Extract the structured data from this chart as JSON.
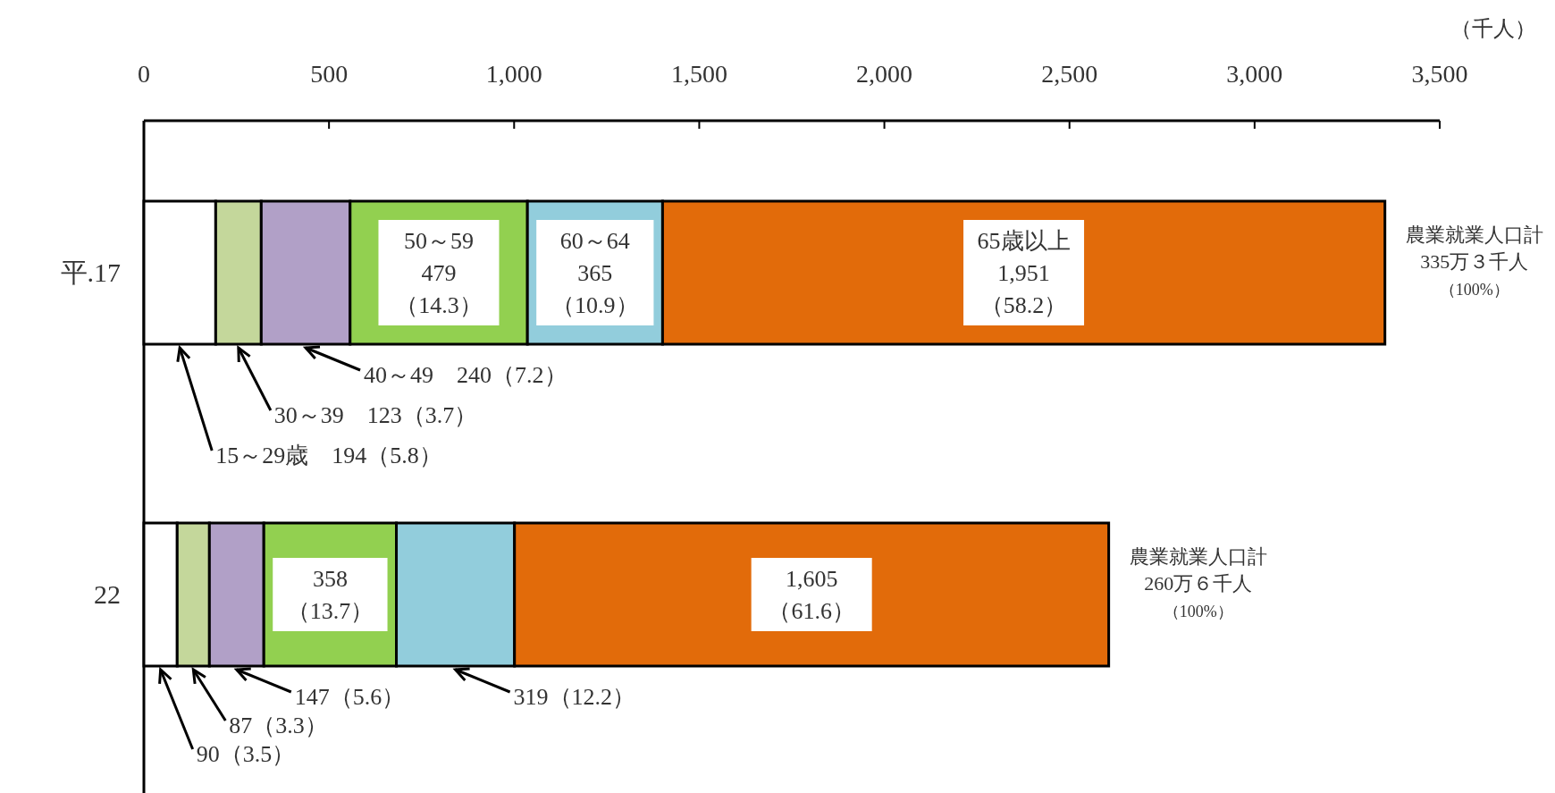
{
  "chart_data": {
    "type": "bar",
    "orientation": "horizontal",
    "stacked": true,
    "xlabel": "（千人）",
    "categories": [
      "平.17",
      "22"
    ],
    "xlim": [
      0,
      3500
    ],
    "xticks": [
      0,
      500,
      {
        "value": 1000,
        "label": "1,000"
      },
      {
        "value": 1500,
        "label": "1,500"
      },
      {
        "value": 2000,
        "label": "2,000"
      },
      {
        "value": 2500,
        "label": "2,500"
      },
      {
        "value": 3000,
        "label": "3,000"
      },
      {
        "value": 3500,
        "label": "3,500"
      }
    ],
    "series": [
      {
        "name": "15～29歳",
        "color": "#ffffff",
        "values": [
          194,
          90
        ],
        "value_labels": [
          "194（5.8）",
          "90（3.5）"
        ]
      },
      {
        "name": "30～39",
        "color": "#c4d79b",
        "values": [
          123,
          87
        ],
        "value_labels": [
          "123（3.7）",
          "87（3.3）"
        ]
      },
      {
        "name": "40～49",
        "color": "#b1a0c7",
        "values": [
          240,
          147
        ],
        "value_labels": [
          "240（7.2）",
          "147（5.6）"
        ]
      },
      {
        "name": "50～59",
        "color": "#92d050",
        "values": [
          479,
          358
        ],
        "value_labels": [
          "479（14.3）",
          "358（13.7）"
        ]
      },
      {
        "name": "60～64",
        "color": "#92cddc",
        "values": [
          365,
          319
        ],
        "value_labels": [
          "365（10.9）",
          "319（12.2）"
        ]
      },
      {
        "name": "65歳以上",
        "color": "#e26b0a",
        "values": [
          1951,
          1605
        ],
        "value_labels": [
          "1,951（58.2）",
          "1,605（61.6）"
        ]
      }
    ],
    "totals": [
      "農業就業人口計335万３千人（100%）",
      "農業就業人口計260万６千人（100%）"
    ]
  }
}
